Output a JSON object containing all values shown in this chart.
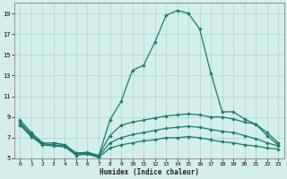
{
  "xlabel": "Humidex (Indice chaleur)",
  "bg_color": "#d4eeeb",
  "grid_color": "#a8d5d0",
  "line_color": "#1a7a6e",
  "xlim": [
    -0.5,
    23.5
  ],
  "ylim": [
    5,
    20
  ],
  "xticks": [
    0,
    1,
    2,
    3,
    4,
    5,
    6,
    7,
    8,
    9,
    10,
    11,
    12,
    13,
    14,
    15,
    16,
    17,
    18,
    19,
    20,
    21,
    22,
    23
  ],
  "yticks": [
    5,
    7,
    9,
    11,
    13,
    15,
    17,
    19
  ],
  "line1_x": [
    0,
    1,
    2,
    3,
    4,
    5,
    6,
    7,
    8,
    9,
    10,
    11,
    12,
    13,
    14,
    15,
    16,
    17,
    18,
    19,
    20,
    21,
    22,
    23
  ],
  "line1_y": [
    8.7,
    7.5,
    6.5,
    6.5,
    6.3,
    5.5,
    5.5,
    5.2,
    8.7,
    10.5,
    13.5,
    14.0,
    16.2,
    18.8,
    19.3,
    19.0,
    17.5,
    13.2,
    9.5,
    9.5,
    8.8,
    8.3,
    7.2,
    6.3
  ],
  "line2_x": [
    0,
    1,
    2,
    3,
    4,
    5,
    6,
    7,
    8,
    9,
    10,
    11,
    12,
    13,
    14,
    15,
    16,
    17,
    18,
    19,
    20,
    21,
    22,
    23
  ],
  "line2_y": [
    8.5,
    7.3,
    6.5,
    6.5,
    6.3,
    5.5,
    5.6,
    5.3,
    7.2,
    8.2,
    8.5,
    8.7,
    8.9,
    9.1,
    9.2,
    9.3,
    9.2,
    9.0,
    9.0,
    8.8,
    8.5,
    8.3,
    7.5,
    6.5
  ],
  "line3_x": [
    0,
    1,
    2,
    3,
    4,
    5,
    6,
    7,
    8,
    9,
    10,
    11,
    12,
    13,
    14,
    15,
    16,
    17,
    18,
    19,
    20,
    21,
    22,
    23
  ],
  "line3_y": [
    8.3,
    7.2,
    6.4,
    6.3,
    6.2,
    5.4,
    5.5,
    5.2,
    6.5,
    7.0,
    7.3,
    7.5,
    7.7,
    7.9,
    8.0,
    8.1,
    8.0,
    7.8,
    7.6,
    7.5,
    7.2,
    6.9,
    6.5,
    6.2
  ],
  "line4_x": [
    0,
    1,
    2,
    3,
    4,
    5,
    6,
    7,
    8,
    9,
    10,
    11,
    12,
    13,
    14,
    15,
    16,
    17,
    18,
    19,
    20,
    21,
    22,
    23
  ],
  "line4_y": [
    8.2,
    7.1,
    6.3,
    6.2,
    6.1,
    5.3,
    5.4,
    5.1,
    6.0,
    6.3,
    6.5,
    6.7,
    6.8,
    7.0,
    7.0,
    7.1,
    7.0,
    6.8,
    6.6,
    6.5,
    6.3,
    6.2,
    6.0,
    5.9
  ]
}
